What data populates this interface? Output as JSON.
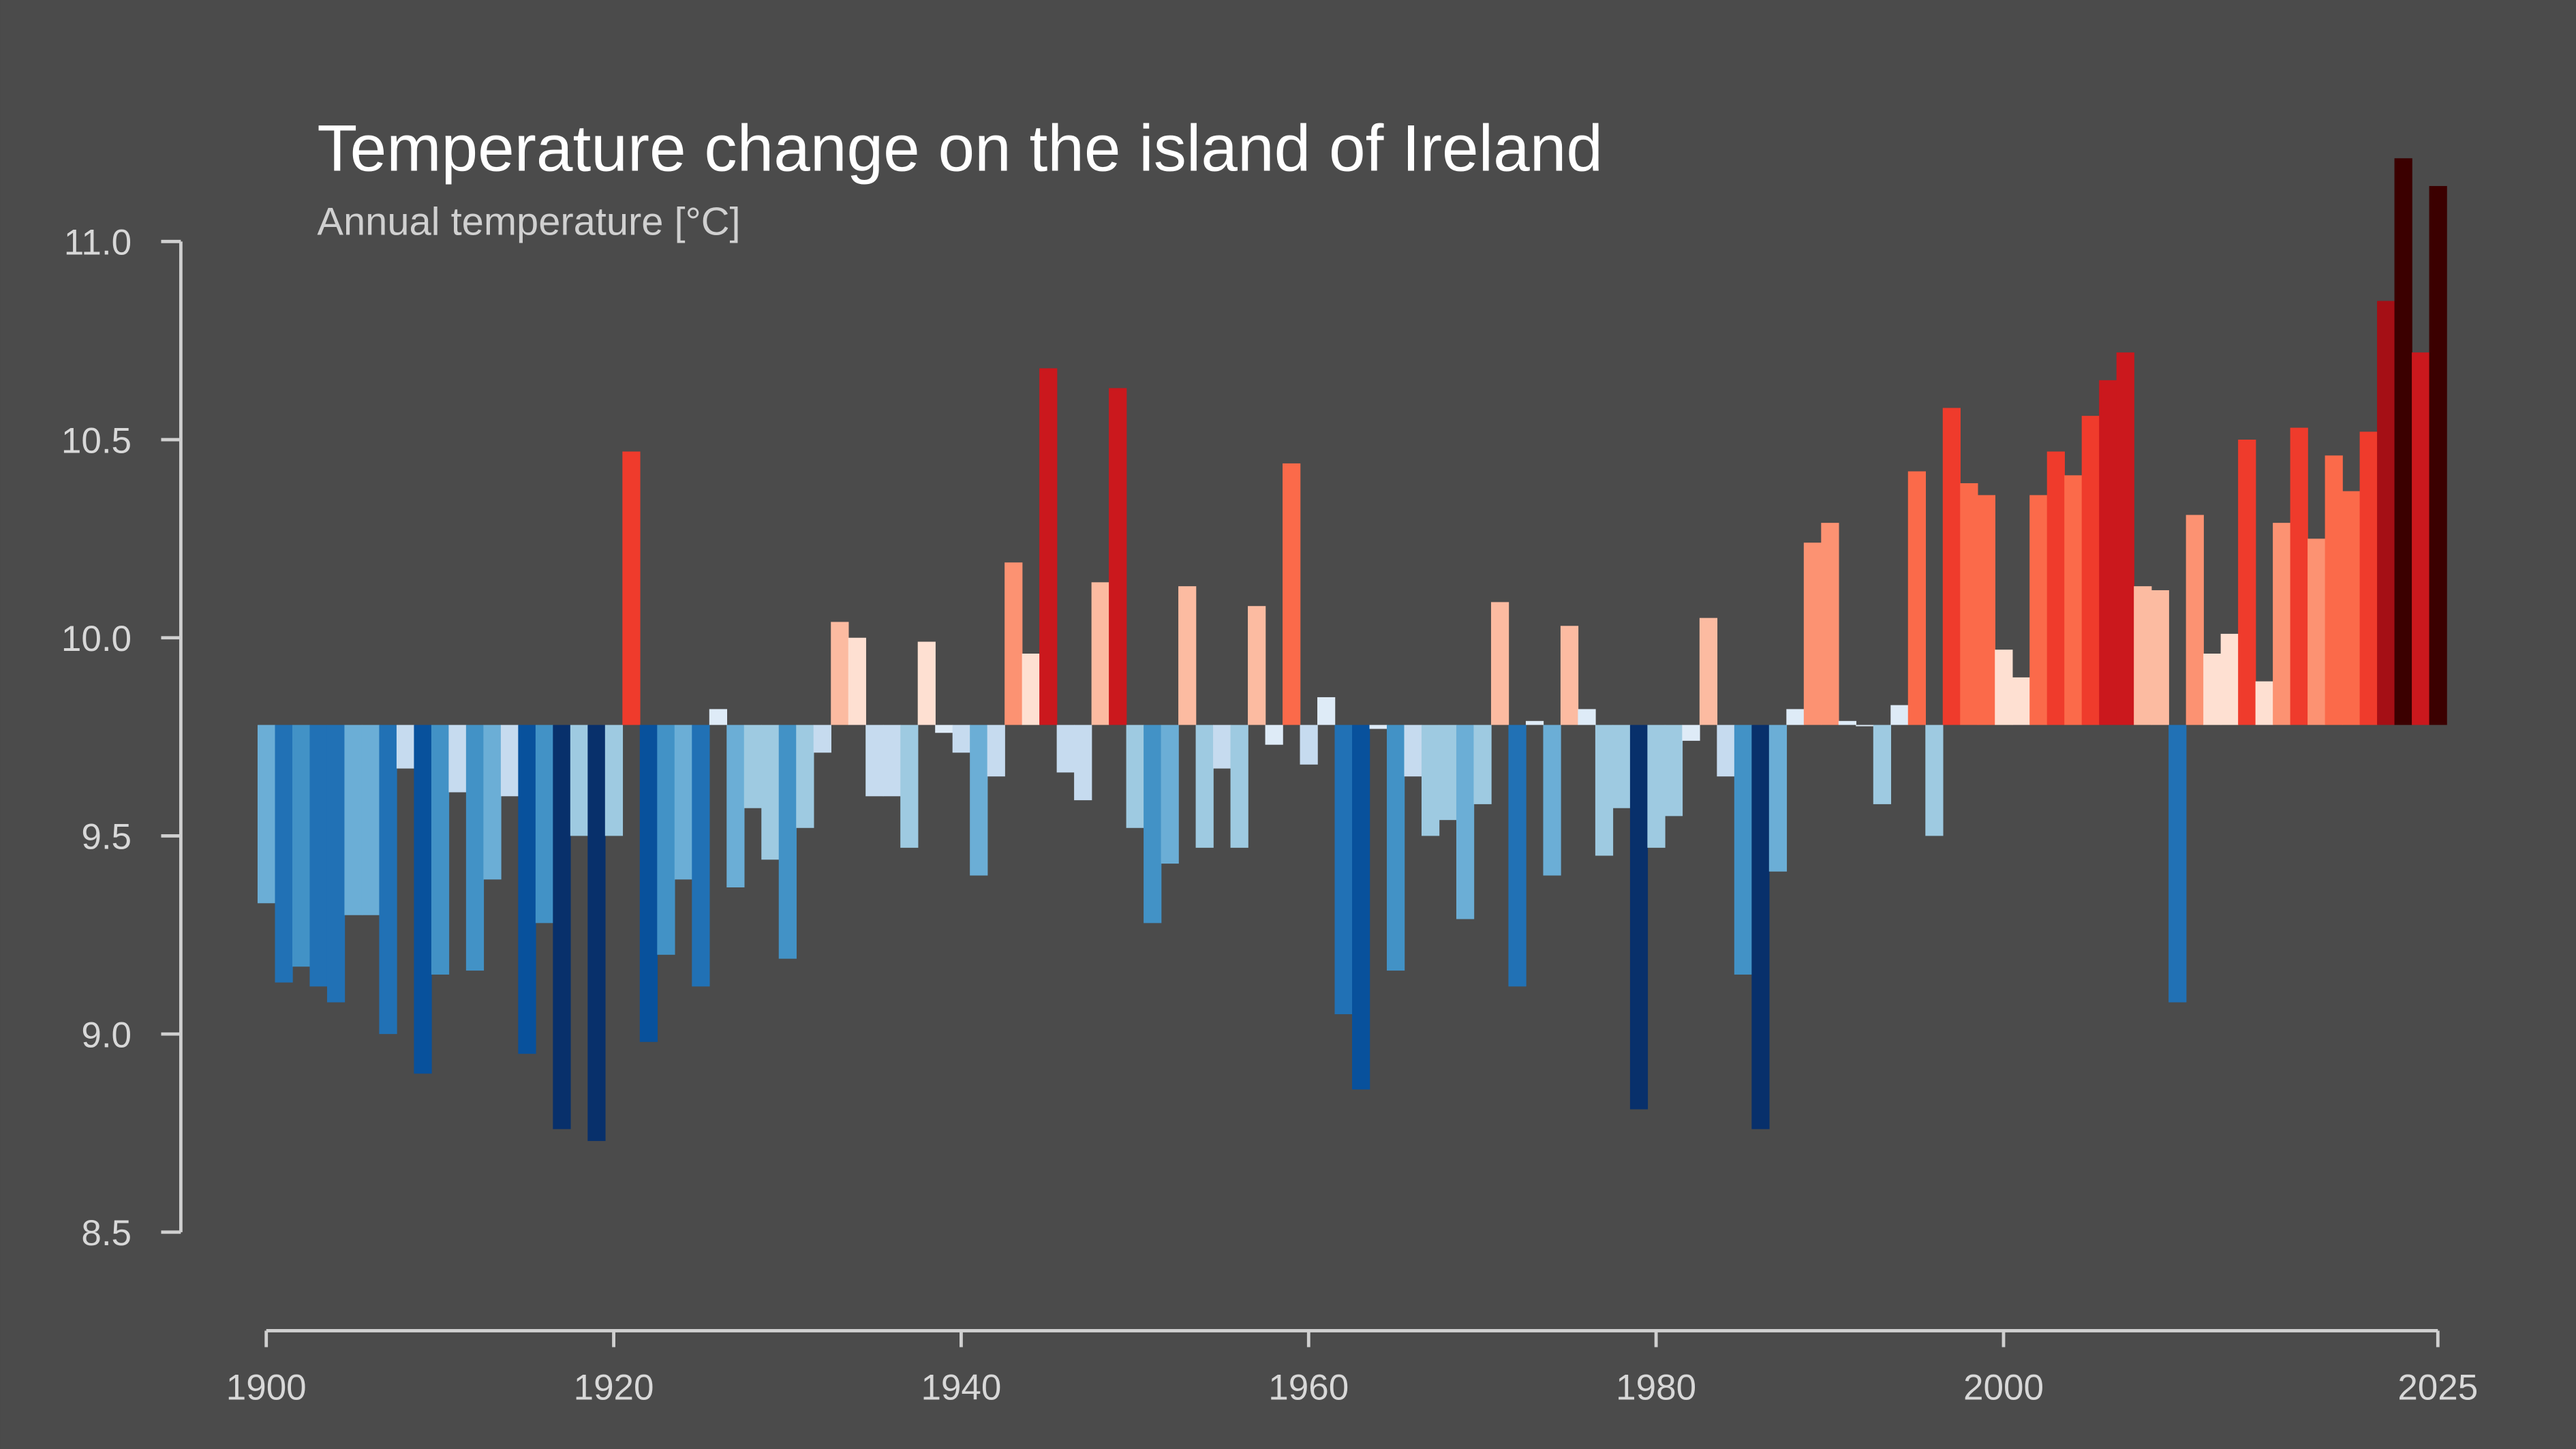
{
  "chart_data": {
    "type": "bar",
    "title": "Temperature change on the island of Ireland",
    "subtitle": "Annual temperature [°C]",
    "xlabel": "",
    "ylabel": "",
    "baseline": 9.78,
    "xlim": [
      1900,
      2025
    ],
    "ylim": [
      8.5,
      11.0
    ],
    "x_ticks": [
      "1900",
      "1920",
      "1940",
      "1960",
      "1980",
      "2000",
      "2025"
    ],
    "y_ticks": [
      "11.0",
      "10.5",
      "10.0",
      "9.5",
      "9.0",
      "8.5"
    ],
    "grid": false,
    "legend": "none",
    "background": "#4b4b4b",
    "palette": [
      "#08306b",
      "#08519c",
      "#2171b5",
      "#4292c6",
      "#6baed6",
      "#9ecae1",
      "#c6dbef",
      "#deebf7",
      "#fee0d2",
      "#fcbba1",
      "#fc9272",
      "#fb6a4a",
      "#ef3b2c",
      "#cb181d",
      "#a50f15",
      "#67000d",
      "#3b0000"
    ],
    "start_year": 1900,
    "values": [
      9.33,
      9.13,
      9.17,
      9.12,
      9.08,
      9.3,
      9.3,
      9.0,
      9.67,
      8.9,
      9.15,
      9.61,
      9.16,
      9.39,
      9.6,
      8.95,
      9.28,
      8.76,
      9.5,
      8.73,
      9.5,
      10.47,
      8.98,
      9.2,
      9.39,
      9.12,
      9.82,
      9.37,
      9.57,
      9.44,
      9.19,
      9.52,
      9.71,
      10.04,
      10.0,
      9.6,
      9.6,
      9.47,
      9.99,
      9.76,
      9.71,
      9.4,
      9.65,
      10.19,
      9.96,
      10.68,
      9.66,
      9.59,
      10.14,
      10.63,
      9.52,
      9.28,
      9.43,
      10.13,
      9.47,
      9.67,
      9.47,
      10.08,
      9.73,
      10.44,
      9.68,
      9.85,
      9.05,
      8.86,
      9.77,
      9.16,
      9.65,
      9.5,
      9.54,
      9.29,
      9.58,
      10.09,
      9.12,
      9.79,
      9.4,
      10.03,
      9.82,
      9.45,
      9.57,
      8.81,
      9.47,
      9.55,
      9.74,
      10.05,
      9.65,
      9.15,
      8.76,
      9.41,
      9.82,
      10.24,
      10.29,
      9.79,
      9.78,
      9.58,
      9.83,
      10.42,
      9.5,
      10.58,
      10.39,
      10.36,
      9.97,
      9.9,
      10.36,
      10.47,
      10.41,
      10.56,
      10.65,
      10.72,
      10.13,
      10.12,
      9.08,
      10.31,
      9.96,
      10.01,
      10.5,
      9.89,
      10.29,
      10.53,
      10.25,
      10.46,
      10.37,
      10.52,
      10.85,
      11.21,
      10.72,
      11.14
    ]
  }
}
